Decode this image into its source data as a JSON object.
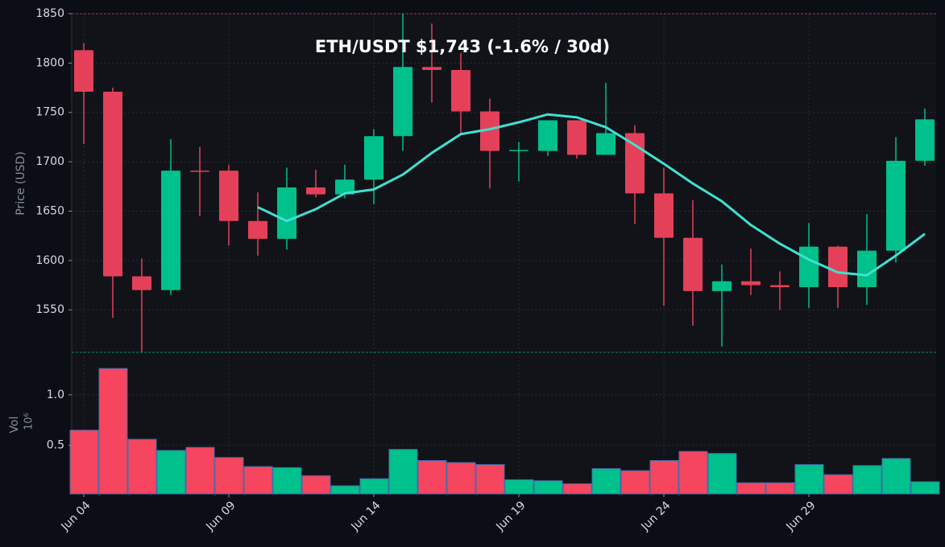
{
  "chart_data": {
    "type": "candlestick",
    "title": "ETH/USDT   $1,743   (-1.6% / 30d)",
    "ylabel": "Price (USD)",
    "categories": [
      "Jun 04",
      null,
      null,
      null,
      null,
      "Jun 09",
      null,
      null,
      null,
      null,
      "Jun 14",
      null,
      null,
      null,
      null,
      "Jun 19",
      null,
      null,
      null,
      null,
      "Jun 24",
      null,
      null,
      null,
      null,
      "Jun 29",
      null,
      null,
      null,
      null
    ],
    "open": [
      1813,
      1771,
      1584,
      1570,
      1691,
      1691,
      1640,
      1622,
      1674,
      1667,
      1682,
      1726,
      1796,
      1793,
      1751,
      1711,
      1711,
      1742,
      1707,
      1729,
      1668,
      1623,
      1569,
      1579,
      1575,
      1573,
      1614,
      1573,
      1610,
      1701
    ],
    "high": [
      1820,
      1775,
      1602,
      1723,
      1715,
      1697,
      1669,
      1694,
      1692,
      1697,
      1733,
      1850,
      1840,
      1810,
      1764,
      1720,
      1742,
      1742,
      1780,
      1737,
      1694,
      1661,
      1596,
      1612,
      1589,
      1638,
      1615,
      1647,
      1725,
      1754
    ],
    "low": [
      1718,
      1542,
      1507,
      1565,
      1645,
      1615,
      1605,
      1611,
      1664,
      1663,
      1657,
      1711,
      1760,
      1729,
      1673,
      1680,
      1706,
      1703,
      1707,
      1637,
      1554,
      1534,
      1513,
      1565,
      1550,
      1552,
      1552,
      1555,
      1598,
      1696
    ],
    "close": [
      1771,
      1584,
      1570,
      1691,
      1690,
      1640,
      1622,
      1674,
      1667,
      1682,
      1726,
      1796,
      1793,
      1751,
      1711,
      1712,
      1742,
      1707,
      1729,
      1668,
      1623,
      1569,
      1579,
      1575,
      1573,
      1614,
      1573,
      1610,
      1701,
      1743
    ],
    "up_color": "#00c08b",
    "down_color": "#e5405a",
    "ma_values": [
      null,
      null,
      null,
      null,
      null,
      null,
      1654,
      1640,
      1652,
      1668,
      1672,
      1687,
      1709,
      1728,
      1733,
      1740,
      1748,
      1745,
      1735,
      1717,
      1698,
      1678,
      1660,
      1636,
      1617,
      1601,
      1588,
      1585,
      1605,
      1627
    ],
    "ma_color": "#40e0d0",
    "ylim": [
      1507,
      1850
    ],
    "yticks": [
      1550,
      1600,
      1650,
      1700,
      1750,
      1800,
      1850
    ],
    "grid": true,
    "volume": {
      "ylabel": "Vol",
      "offset_label": "10⁶",
      "values": [
        0.65,
        1.26,
        0.56,
        0.45,
        0.48,
        0.38,
        0.29,
        0.28,
        0.2,
        0.1,
        0.17,
        0.46,
        0.35,
        0.33,
        0.31,
        0.16,
        0.15,
        0.12,
        0.27,
        0.25,
        0.35,
        0.44,
        0.42,
        0.13,
        0.13,
        0.31,
        0.21,
        0.3,
        0.37,
        0.14
      ],
      "ylim": [
        0.02,
        1.42
      ],
      "yticks": [
        0.5,
        {
          "value": 1,
          "label": "1.0"
        }
      ]
    }
  }
}
